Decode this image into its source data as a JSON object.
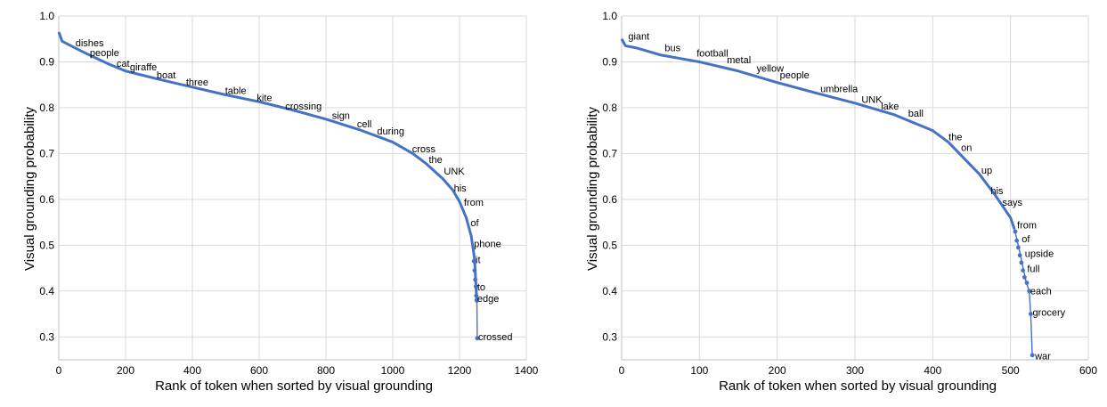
{
  "chart_data": [
    {
      "type": "line",
      "xlabel": "Rank of token when sorted by visual grounding",
      "ylabel": "Visual grounding probability",
      "xlim": [
        0,
        1400
      ],
      "ylim": [
        0.25,
        1.0
      ],
      "xticks": [
        0,
        200,
        400,
        600,
        800,
        1000,
        1200,
        1400
      ],
      "yticks": [
        0.3,
        0.4,
        0.5,
        0.6,
        0.7,
        0.8,
        0.9,
        1.0
      ],
      "ytick_labels": [
        "0.3",
        "0.4",
        "0.5",
        "0.6",
        "0.7",
        "0.8",
        "0.9",
        "1.0"
      ],
      "grid": true,
      "color": "#4472c4",
      "curve": [
        {
          "x": 0,
          "y": 0.965
        },
        {
          "x": 10,
          "y": 0.945
        },
        {
          "x": 50,
          "y": 0.93
        },
        {
          "x": 100,
          "y": 0.912
        },
        {
          "x": 150,
          "y": 0.895
        },
        {
          "x": 200,
          "y": 0.88
        },
        {
          "x": 300,
          "y": 0.862
        },
        {
          "x": 400,
          "y": 0.845
        },
        {
          "x": 500,
          "y": 0.828
        },
        {
          "x": 600,
          "y": 0.813
        },
        {
          "x": 700,
          "y": 0.795
        },
        {
          "x": 800,
          "y": 0.775
        },
        {
          "x": 900,
          "y": 0.752
        },
        {
          "x": 1000,
          "y": 0.725
        },
        {
          "x": 1060,
          "y": 0.7
        },
        {
          "x": 1100,
          "y": 0.678
        },
        {
          "x": 1150,
          "y": 0.645
        },
        {
          "x": 1180,
          "y": 0.62
        },
        {
          "x": 1200,
          "y": 0.595
        },
        {
          "x": 1220,
          "y": 0.56
        },
        {
          "x": 1235,
          "y": 0.52
        },
        {
          "x": 1245,
          "y": 0.47
        },
        {
          "x": 1250,
          "y": 0.4
        },
        {
          "x": 1252,
          "y": 0.375
        }
      ],
      "tail": [
        {
          "x": 1252,
          "y": 0.375
        },
        {
          "x": 1253,
          "y": 0.297
        }
      ],
      "points": [
        {
          "x": 1243,
          "y": 0.465
        },
        {
          "x": 1245,
          "y": 0.445
        },
        {
          "x": 1247,
          "y": 0.425
        },
        {
          "x": 1249,
          "y": 0.41
        },
        {
          "x": 1250,
          "y": 0.39
        },
        {
          "x": 1251,
          "y": 0.38
        },
        {
          "x": 1253,
          "y": 0.297
        }
      ],
      "annotations": [
        {
          "text": "dishes",
          "x": 42,
          "y": 0.938
        },
        {
          "text": "people",
          "x": 85,
          "y": 0.916
        },
        {
          "text": "cat",
          "x": 165,
          "y": 0.893
        },
        {
          "text": "giraffe",
          "x": 205,
          "y": 0.885
        },
        {
          "text": "boat",
          "x": 285,
          "y": 0.868
        },
        {
          "text": "three",
          "x": 373,
          "y": 0.852
        },
        {
          "text": "table",
          "x": 490,
          "y": 0.834
        },
        {
          "text": "kite",
          "x": 585,
          "y": 0.818
        },
        {
          "text": "crossing",
          "x": 670,
          "y": 0.8
        },
        {
          "text": "sign",
          "x": 810,
          "y": 0.779
        },
        {
          "text": "cell",
          "x": 885,
          "y": 0.761
        },
        {
          "text": "during",
          "x": 945,
          "y": 0.745
        },
        {
          "text": "cross",
          "x": 1050,
          "y": 0.707
        },
        {
          "text": "the",
          "x": 1100,
          "y": 0.683
        },
        {
          "text": "UNK",
          "x": 1145,
          "y": 0.658
        },
        {
          "text": "his",
          "x": 1175,
          "y": 0.621
        },
        {
          "text": "from",
          "x": 1205,
          "y": 0.59
        },
        {
          "text": "of",
          "x": 1225,
          "y": 0.545
        },
        {
          "text": "phone",
          "x": 1235,
          "y": 0.5
        },
        {
          "text": "it",
          "x": 1240,
          "y": 0.465
        },
        {
          "text": "to",
          "x": 1245,
          "y": 0.405
        },
        {
          "text": "edge",
          "x": 1245,
          "y": 0.38
        },
        {
          "text": "crossed",
          "x": 1248,
          "y": 0.297
        }
      ]
    },
    {
      "type": "line",
      "xlabel": "Rank of token when sorted by visual grounding",
      "ylabel": "Visual grounding probability",
      "xlim": [
        0,
        600
      ],
      "ylim": [
        0.25,
        1.0
      ],
      "xticks": [
        0,
        100,
        200,
        300,
        400,
        500,
        600
      ],
      "yticks": [
        0.3,
        0.4,
        0.5,
        0.6,
        0.7,
        0.8,
        0.9,
        1.0
      ],
      "ytick_labels": [
        "0.3",
        "0.4",
        "0.5",
        "0.6",
        "0.7",
        "0.8",
        "0.9",
        "1.0"
      ],
      "grid": true,
      "color": "#4472c4",
      "curve": [
        {
          "x": 0,
          "y": 0.95
        },
        {
          "x": 5,
          "y": 0.935
        },
        {
          "x": 20,
          "y": 0.93
        },
        {
          "x": 50,
          "y": 0.915
        },
        {
          "x": 100,
          "y": 0.9
        },
        {
          "x": 150,
          "y": 0.88
        },
        {
          "x": 200,
          "y": 0.855
        },
        {
          "x": 250,
          "y": 0.832
        },
        {
          "x": 300,
          "y": 0.81
        },
        {
          "x": 350,
          "y": 0.785
        },
        {
          "x": 400,
          "y": 0.75
        },
        {
          "x": 420,
          "y": 0.725
        },
        {
          "x": 440,
          "y": 0.69
        },
        {
          "x": 460,
          "y": 0.655
        },
        {
          "x": 480,
          "y": 0.61
        },
        {
          "x": 500,
          "y": 0.56
        },
        {
          "x": 505,
          "y": 0.535
        }
      ],
      "tail": [
        {
          "x": 505,
          "y": 0.535
        },
        {
          "x": 510,
          "y": 0.5
        },
        {
          "x": 515,
          "y": 0.46
        },
        {
          "x": 520,
          "y": 0.42
        },
        {
          "x": 524,
          "y": 0.4
        },
        {
          "x": 526,
          "y": 0.35
        },
        {
          "x": 528,
          "y": 0.26
        }
      ],
      "points": [
        {
          "x": 506,
          "y": 0.53
        },
        {
          "x": 508,
          "y": 0.51
        },
        {
          "x": 510,
          "y": 0.495
        },
        {
          "x": 512,
          "y": 0.478
        },
        {
          "x": 514,
          "y": 0.462
        },
        {
          "x": 516,
          "y": 0.445
        },
        {
          "x": 518,
          "y": 0.43
        },
        {
          "x": 521,
          "y": 0.418
        },
        {
          "x": 524,
          "y": 0.4
        },
        {
          "x": 526,
          "y": 0.35
        },
        {
          "x": 528,
          "y": 0.26
        }
      ],
      "annotations": [
        {
          "text": "giant",
          "x": 5,
          "y": 0.952
        },
        {
          "text": "bus",
          "x": 52,
          "y": 0.927
        },
        {
          "text": "football",
          "x": 93,
          "y": 0.915
        },
        {
          "text": "metal",
          "x": 132,
          "y": 0.901
        },
        {
          "text": "yellow",
          "x": 170,
          "y": 0.882
        },
        {
          "text": "people",
          "x": 200,
          "y": 0.868
        },
        {
          "text": "umbrella",
          "x": 252,
          "y": 0.838
        },
        {
          "text": "UNK",
          "x": 305,
          "y": 0.814
        },
        {
          "text": "lake",
          "x": 330,
          "y": 0.8
        },
        {
          "text": "ball",
          "x": 365,
          "y": 0.784
        },
        {
          "text": "the",
          "x": 417,
          "y": 0.733
        },
        {
          "text": "on",
          "x": 433,
          "y": 0.71
        },
        {
          "text": "up",
          "x": 459,
          "y": 0.66
        },
        {
          "text": "his",
          "x": 471,
          "y": 0.615
        },
        {
          "text": "says",
          "x": 486,
          "y": 0.59
        },
        {
          "text": "from",
          "x": 505,
          "y": 0.54
        },
        {
          "text": "of",
          "x": 511,
          "y": 0.51
        },
        {
          "text": "upside",
          "x": 515,
          "y": 0.478
        },
        {
          "text": "full",
          "x": 518,
          "y": 0.445
        },
        {
          "text": "each",
          "x": 522,
          "y": 0.397
        },
        {
          "text": "grocery",
          "x": 525,
          "y": 0.35
        },
        {
          "text": "war",
          "x": 528,
          "y": 0.255
        }
      ]
    }
  ]
}
